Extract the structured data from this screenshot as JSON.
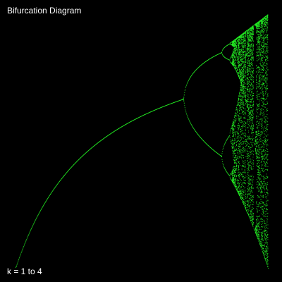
{
  "colors": {
    "background": "#000000",
    "points": "#22ee22",
    "text": "#ffffff"
  },
  "chart_data": {
    "type": "scatter",
    "map": "logistic",
    "title": "Bifurcation Diagram",
    "range_label": "k = 1 to 4",
    "k_range": [
      1,
      4
    ],
    "x_range": [
      0,
      1
    ],
    "grid": false,
    "axes_visible": false,
    "legend": "none"
  }
}
